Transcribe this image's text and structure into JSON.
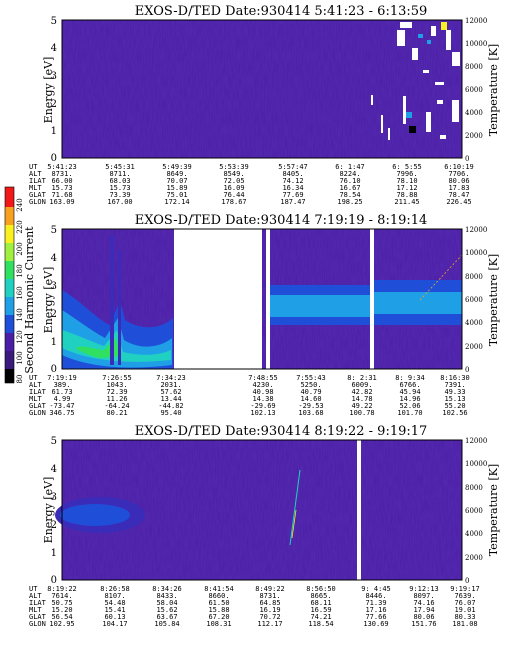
{
  "colors": {
    "background": "#4a1fa6",
    "gap": "#ffffff"
  },
  "colorbar": {
    "label": "Second Harmonic Current",
    "ticks": [
      "240",
      "220",
      "200",
      "180",
      "160",
      "140",
      "120",
      "100",
      "80"
    ],
    "colors": [
      "#000000",
      "#3a1a7a",
      "#4a1fa6",
      "#1f4fd8",
      "#1fa0e6",
      "#20d0c0",
      "#30e060",
      "#a0f040",
      "#f8f020",
      "#f8a020",
      "#f01818"
    ],
    "range": [
      80,
      240
    ]
  },
  "panels": [
    {
      "title": "EXOS-D/TED   Date:930414  5:41:23 - 6:13:59",
      "ylabel": "Energy [eV]",
      "y2label": "Temperature [K]",
      "yticks": [
        "5",
        "4",
        "3",
        "2",
        "1",
        "0"
      ],
      "y2ticks": [
        "12000",
        "10000",
        "8000",
        "6000",
        "4000",
        "2000",
        "0"
      ],
      "ephemeris": {
        "labels": [
          "UT",
          "ALT",
          "ILAT",
          "MLT",
          "GLAT",
          "GLON"
        ],
        "columns": [
          [
            "5:41:23",
            "8731.",
            "66.00",
            "15.73",
            "71.68",
            "163.09"
          ],
          [
            "5:45:31",
            "8711.",
            "68.03",
            "15.73",
            "73.39",
            "167.00"
          ],
          [
            "5:49:39",
            "8649.",
            "70.07",
            "15.89",
            "75.01",
            "172.14"
          ],
          [
            "5:53:39",
            "8549.",
            "72.05",
            "16.09",
            "76.44",
            "178.67"
          ],
          [
            "5:57:47",
            "8405.",
            "74.12",
            "16.34",
            "77.69",
            "187.47"
          ],
          [
            "6: 1:47",
            "8224.",
            "76.10",
            "16.67",
            "78.54",
            "198.25"
          ],
          [
            "6: 5:55",
            "7996.",
            "78.10",
            "17.12",
            "78.88",
            "211.45"
          ],
          [
            "6:10:19",
            "7706.",
            "80.06",
            "17.83",
            "78.47",
            "226.45"
          ]
        ]
      }
    },
    {
      "title": "EXOS-D/TED   Date:930414  7:19:19 - 8:19:14",
      "ylabel": "Energy [eV]",
      "y2label": "Temperature [K]",
      "yticks": [
        "5",
        "4",
        "3",
        "2",
        "1",
        "0"
      ],
      "y2ticks": [
        "12000",
        "10000",
        "8000",
        "6000",
        "4000",
        "2000",
        "0"
      ],
      "ephemeris": {
        "labels": [
          "UT",
          "ALT",
          "ILAT",
          "MLT",
          "GLAT",
          "GLON"
        ],
        "columns": [
          [
            "7:19:19",
            "389.",
            "61.73",
            "4.99",
            "-73.47",
            "346.75"
          ],
          [
            "7:26:55",
            "1043.",
            "72.39",
            "11.26",
            "-64.24",
            "80.21"
          ],
          [
            "7:34:23",
            "2031.",
            "57.62",
            "13.44",
            "-44.82",
            "95.40"
          ],
          [
            "7:48:55",
            "4230.",
            "40.98",
            "14.38",
            "-29.69",
            "102.13"
          ],
          [
            "7:55:43",
            "5250.",
            "40.79",
            "14.60",
            "-29.53",
            "103.68"
          ],
          [
            "8: 2:31",
            "6009.",
            "42.82",
            "14.78",
            "49.22",
            "100.78"
          ],
          [
            "8: 9:34",
            "6766.",
            "45.94",
            "14.96",
            "52.06",
            "101.70"
          ],
          [
            "8:16:30",
            "7391.",
            "49.33",
            "15.13",
            "55.20",
            "102.56"
          ]
        ]
      }
    },
    {
      "title": "EXOS-D/TED   Date:930414  8:19:22 - 9:19:17",
      "ylabel": "Energy [eV]",
      "y2label": "Temperature [K]",
      "yticks": [
        "5",
        "4",
        "3",
        "2",
        "1",
        "0"
      ],
      "y2ticks": [
        "12000",
        "10000",
        "8000",
        "6000",
        "4000",
        "2000",
        "0"
      ],
      "ephemeris": {
        "labels": [
          "UT",
          "ALT",
          "ILAT",
          "MLT",
          "GLAT",
          "GLON"
        ],
        "columns": [
          [
            "8:19:22",
            "7614.",
            "50.75",
            "15.20",
            "56.54",
            "102.95"
          ],
          [
            "8:26:58",
            "8107.",
            "54.48",
            "15.41",
            "60.13",
            "104.17"
          ],
          [
            "8:34:26",
            "8433.",
            "58.04",
            "15.62",
            "63.67",
            "105.84"
          ],
          [
            "8:41:54",
            "8660.",
            "61.50",
            "15.88",
            "67.20",
            "108.31"
          ],
          [
            "8:49:22",
            "8731.",
            "64.85",
            "16.19",
            "70.72",
            "112.17"
          ],
          [
            "8:56:50",
            "8665.",
            "68.11",
            "16.59",
            "74.21",
            "118.54"
          ],
          [
            "9: 4:45",
            "8446.",
            "71.39",
            "17.16",
            "77.66",
            "130.69"
          ],
          [
            "9:12:13",
            "8097.",
            "74.16",
            "17.94",
            "80.06",
            "151.76"
          ],
          [
            "9:19:17",
            "7639.",
            "76.07",
            "19.01",
            "80.33",
            "181.08"
          ]
        ]
      }
    }
  ],
  "chart_data": [
    {
      "type": "heatmap",
      "title": "EXOS-D/TED   Date:930414  5:41:23 - 6:13:59",
      "ylabel": "Energy [eV]",
      "y2label": "Temperature [K]",
      "ylim": [
        0,
        5
      ],
      "y2lim": [
        0,
        12000
      ],
      "x_ticks": [
        "5:41:23",
        "5:45:31",
        "5:49:39",
        "5:53:39",
        "5:57:47",
        "6: 1:47",
        "6: 5:55",
        "6:10:19"
      ],
      "note_data": "mostly background level; sparse high-intensity spots near the end of interval"
    },
    {
      "type": "heatmap",
      "title": "EXOS-D/TED   Date:930414  7:19:19 - 8:19:14",
      "ylabel": "Energy [eV]",
      "y2label": "Temperature [K]",
      "ylim": [
        0,
        5
      ],
      "y2lim": [
        0,
        12000
      ],
      "x_ticks": [
        "7:19:19",
        "7:26:55",
        "7:34:23",
        "7:48:55",
        "7:55:43",
        "8: 2:31",
        "8: 9:34",
        "8:16:30"
      ],
      "bands": [
        {
          "x_range": [
            "7:19:19",
            "7:34:23"
          ],
          "energy": [
            0.2,
            2.0
          ],
          "level": 180
        },
        {
          "x_range": [
            "7:48:55",
            "8:16:30"
          ],
          "energy": [
            1.5,
            3.0
          ],
          "level": 150
        }
      ],
      "gaps": [
        [
          "7:34:23",
          "7:48:55"
        ],
        [
          "8: 2:31",
          "8: 2:31"
        ]
      ]
    },
    {
      "type": "heatmap",
      "title": "EXOS-D/TED   Date:930414  8:19:22 - 9:19:17",
      "ylabel": "Energy [eV]",
      "y2label": "Temperature [K]",
      "ylim": [
        0,
        5
      ],
      "y2lim": [
        0,
        12000
      ],
      "x_ticks": [
        "8:19:22",
        "8:26:58",
        "8:34:26",
        "8:41:54",
        "8:49:22",
        "8:56:50",
        "9: 4:45",
        "9:12:13",
        "9:19:17"
      ],
      "bands": [
        {
          "x_range": [
            "8:19:22",
            "8:26:58"
          ],
          "energy": [
            1.8,
            3.0
          ],
          "level": 140
        }
      ],
      "gaps": [
        [
          "9: 4:45",
          "9: 4:45"
        ]
      ]
    }
  ]
}
